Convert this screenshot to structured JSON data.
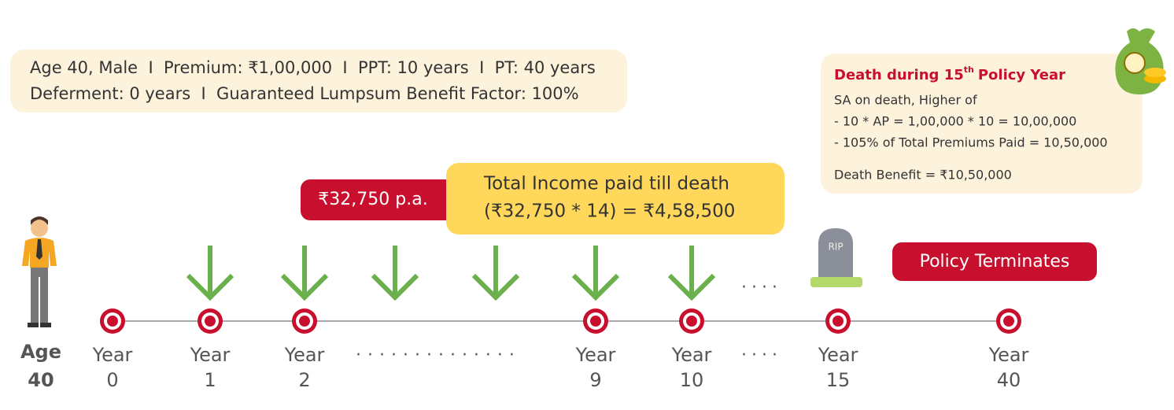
{
  "info": {
    "lines": [
      "Age 40, Male  I  Premium: ₹1,00,000  I  PPT: 10 years  I  PT: 40 years",
      "Deferment: 0 years  I  Guaranteed Lumpsum Benefit Factor: 100%"
    ]
  },
  "income_tag": "₹32,750 p.a.",
  "total_income": {
    "lines": [
      "Total Income paid till death",
      "(₹32,750 * 14) = ₹4,58,500"
    ]
  },
  "death_box": {
    "title": [
      "Death during 15",
      "th",
      "Policy Year"
    ],
    "lines": [
      "SA on death, Higher of",
      "- 10 * AP = 1,00,000 * 10 = 10,00,000",
      "- 105% of Total Premiums Paid = 10,50,000"
    ],
    "benefit": "Death Benefit = ₹10,50,000"
  },
  "terminates": "Policy Terminates",
  "grave": "RIP",
  "person": {
    "label": "Age",
    "age": 40
  },
  "timeline": [
    {
      "label": "Year",
      "year": 0
    },
    {
      "label": "Year",
      "year": 1
    },
    {
      "label": "Year",
      "year": 2
    },
    {
      "label": "Year",
      "year": 9
    },
    {
      "label": "Year",
      "year": 10
    },
    {
      "label": "Year",
      "year": 15
    },
    {
      "label": "Year",
      "year": 40
    }
  ]
}
